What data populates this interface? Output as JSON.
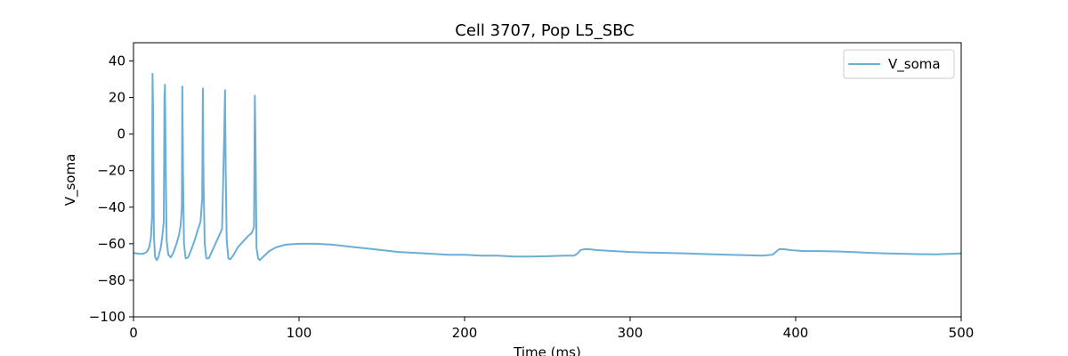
{
  "chart_data": {
    "type": "line",
    "title": "Cell 3707, Pop L5_SBC",
    "xlabel": "Time (ms)",
    "ylabel": "V_soma",
    "xlim": [
      0,
      500
    ],
    "ylim": [
      -100,
      50
    ],
    "xticks": [
      0,
      100,
      200,
      300,
      400,
      500
    ],
    "xtick_labels": [
      "0",
      "100",
      "200",
      "300",
      "400",
      "500"
    ],
    "yticks": [
      -100,
      -80,
      -60,
      -40,
      -20,
      0,
      20,
      40
    ],
    "ytick_labels": [
      "−100",
      "−80",
      "−60",
      "−40",
      "−20",
      "0",
      "20",
      "40"
    ],
    "grid": false,
    "legend_position": "top-right",
    "series": [
      {
        "name": "V_soma",
        "color": "#6baed6",
        "x": [
          0,
          3,
          6,
          8,
          9.5,
          10.5,
          11.2,
          11.5,
          11.8,
          12.3,
          13,
          14,
          15,
          16.5,
          17.5,
          18.3,
          18.7,
          19,
          19.4,
          20,
          21,
          22.5,
          24,
          26,
          27.5,
          28.5,
          29.2,
          29.5,
          29.9,
          30.5,
          31.5,
          33,
          35,
          37,
          39,
          40.5,
          41.5,
          41.9,
          42.3,
          43,
          44,
          45.5,
          47.5,
          50,
          52,
          53.5,
          54.8,
          55.3,
          55.7,
          56.3,
          57.3,
          58.5,
          60.5,
          63,
          66,
          69,
          71.5,
          72.8,
          73.3,
          73.7,
          74.3,
          75.3,
          76.3,
          78.5,
          82,
          86,
          92,
          100,
          110,
          120,
          130,
          140,
          150,
          160,
          170,
          180,
          190,
          200,
          210,
          220,
          230,
          240,
          250,
          260,
          266,
          268,
          270,
          272,
          275,
          280,
          290,
          300,
          310,
          320,
          330,
          340,
          350,
          360,
          370,
          380,
          386,
          388,
          390,
          393,
          397,
          405,
          415,
          425,
          435,
          445,
          455,
          465,
          475,
          485,
          495,
          500
        ],
        "y": [
          -65,
          -65.5,
          -65.5,
          -64.5,
          -62,
          -57,
          -45,
          33,
          15,
          -55,
          -67,
          -69,
          -67.5,
          -62,
          -55,
          -48,
          20,
          27,
          -10,
          -58,
          -66,
          -67.5,
          -65,
          -60,
          -55,
          -50,
          -40,
          26,
          -20,
          -60,
          -68,
          -67.5,
          -63,
          -58,
          -52,
          -48,
          -35,
          25,
          -25,
          -60,
          -68,
          -68,
          -64,
          -59,
          -55,
          -52,
          0,
          24,
          -20,
          -58,
          -68,
          -68.5,
          -66,
          -62,
          -59,
          -56,
          -54,
          -51,
          21,
          -5,
          -62,
          -68,
          -69,
          -67,
          -64,
          -62,
          -60.5,
          -60,
          -60,
          -60.5,
          -61.5,
          -62.5,
          -63.5,
          -64.5,
          -65,
          -65.5,
          -66,
          -66,
          -66.5,
          -66.5,
          -67,
          -67,
          -66.8,
          -66.5,
          -66.5,
          -65.5,
          -63.5,
          -63,
          -63,
          -63.5,
          -64,
          -64.5,
          -64.8,
          -65,
          -65.2,
          -65.5,
          -65.8,
          -66,
          -66.3,
          -66.5,
          -66,
          -64.5,
          -63,
          -63,
          -63.5,
          -64,
          -64,
          -64.2,
          -64.6,
          -65,
          -65.3,
          -65.5,
          -65.7,
          -65.8,
          -65.5,
          -65.3
        ]
      }
    ]
  }
}
